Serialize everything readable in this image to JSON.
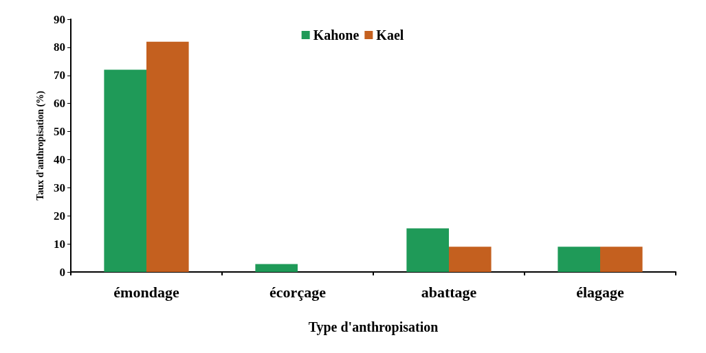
{
  "chart_data": {
    "type": "bar",
    "xlabel": "Type d'anthropisation",
    "ylabel": "Taux d'anthropisation (%)",
    "categories": [
      "émondage",
      "écorçage",
      "abattage",
      "élagage"
    ],
    "series": [
      {
        "name": "Kahone",
        "color": "#1f9a58",
        "values": [
          72,
          2.8,
          15.5,
          9
        ]
      },
      {
        "name": "Kael",
        "color": "#c4601f",
        "values": [
          82,
          0,
          9,
          9
        ]
      }
    ],
    "ylim": [
      0,
      90
    ],
    "yticks": [
      0,
      10,
      20,
      30,
      40,
      50,
      60,
      70,
      80,
      90
    ],
    "grid": false,
    "legend": "top"
  }
}
